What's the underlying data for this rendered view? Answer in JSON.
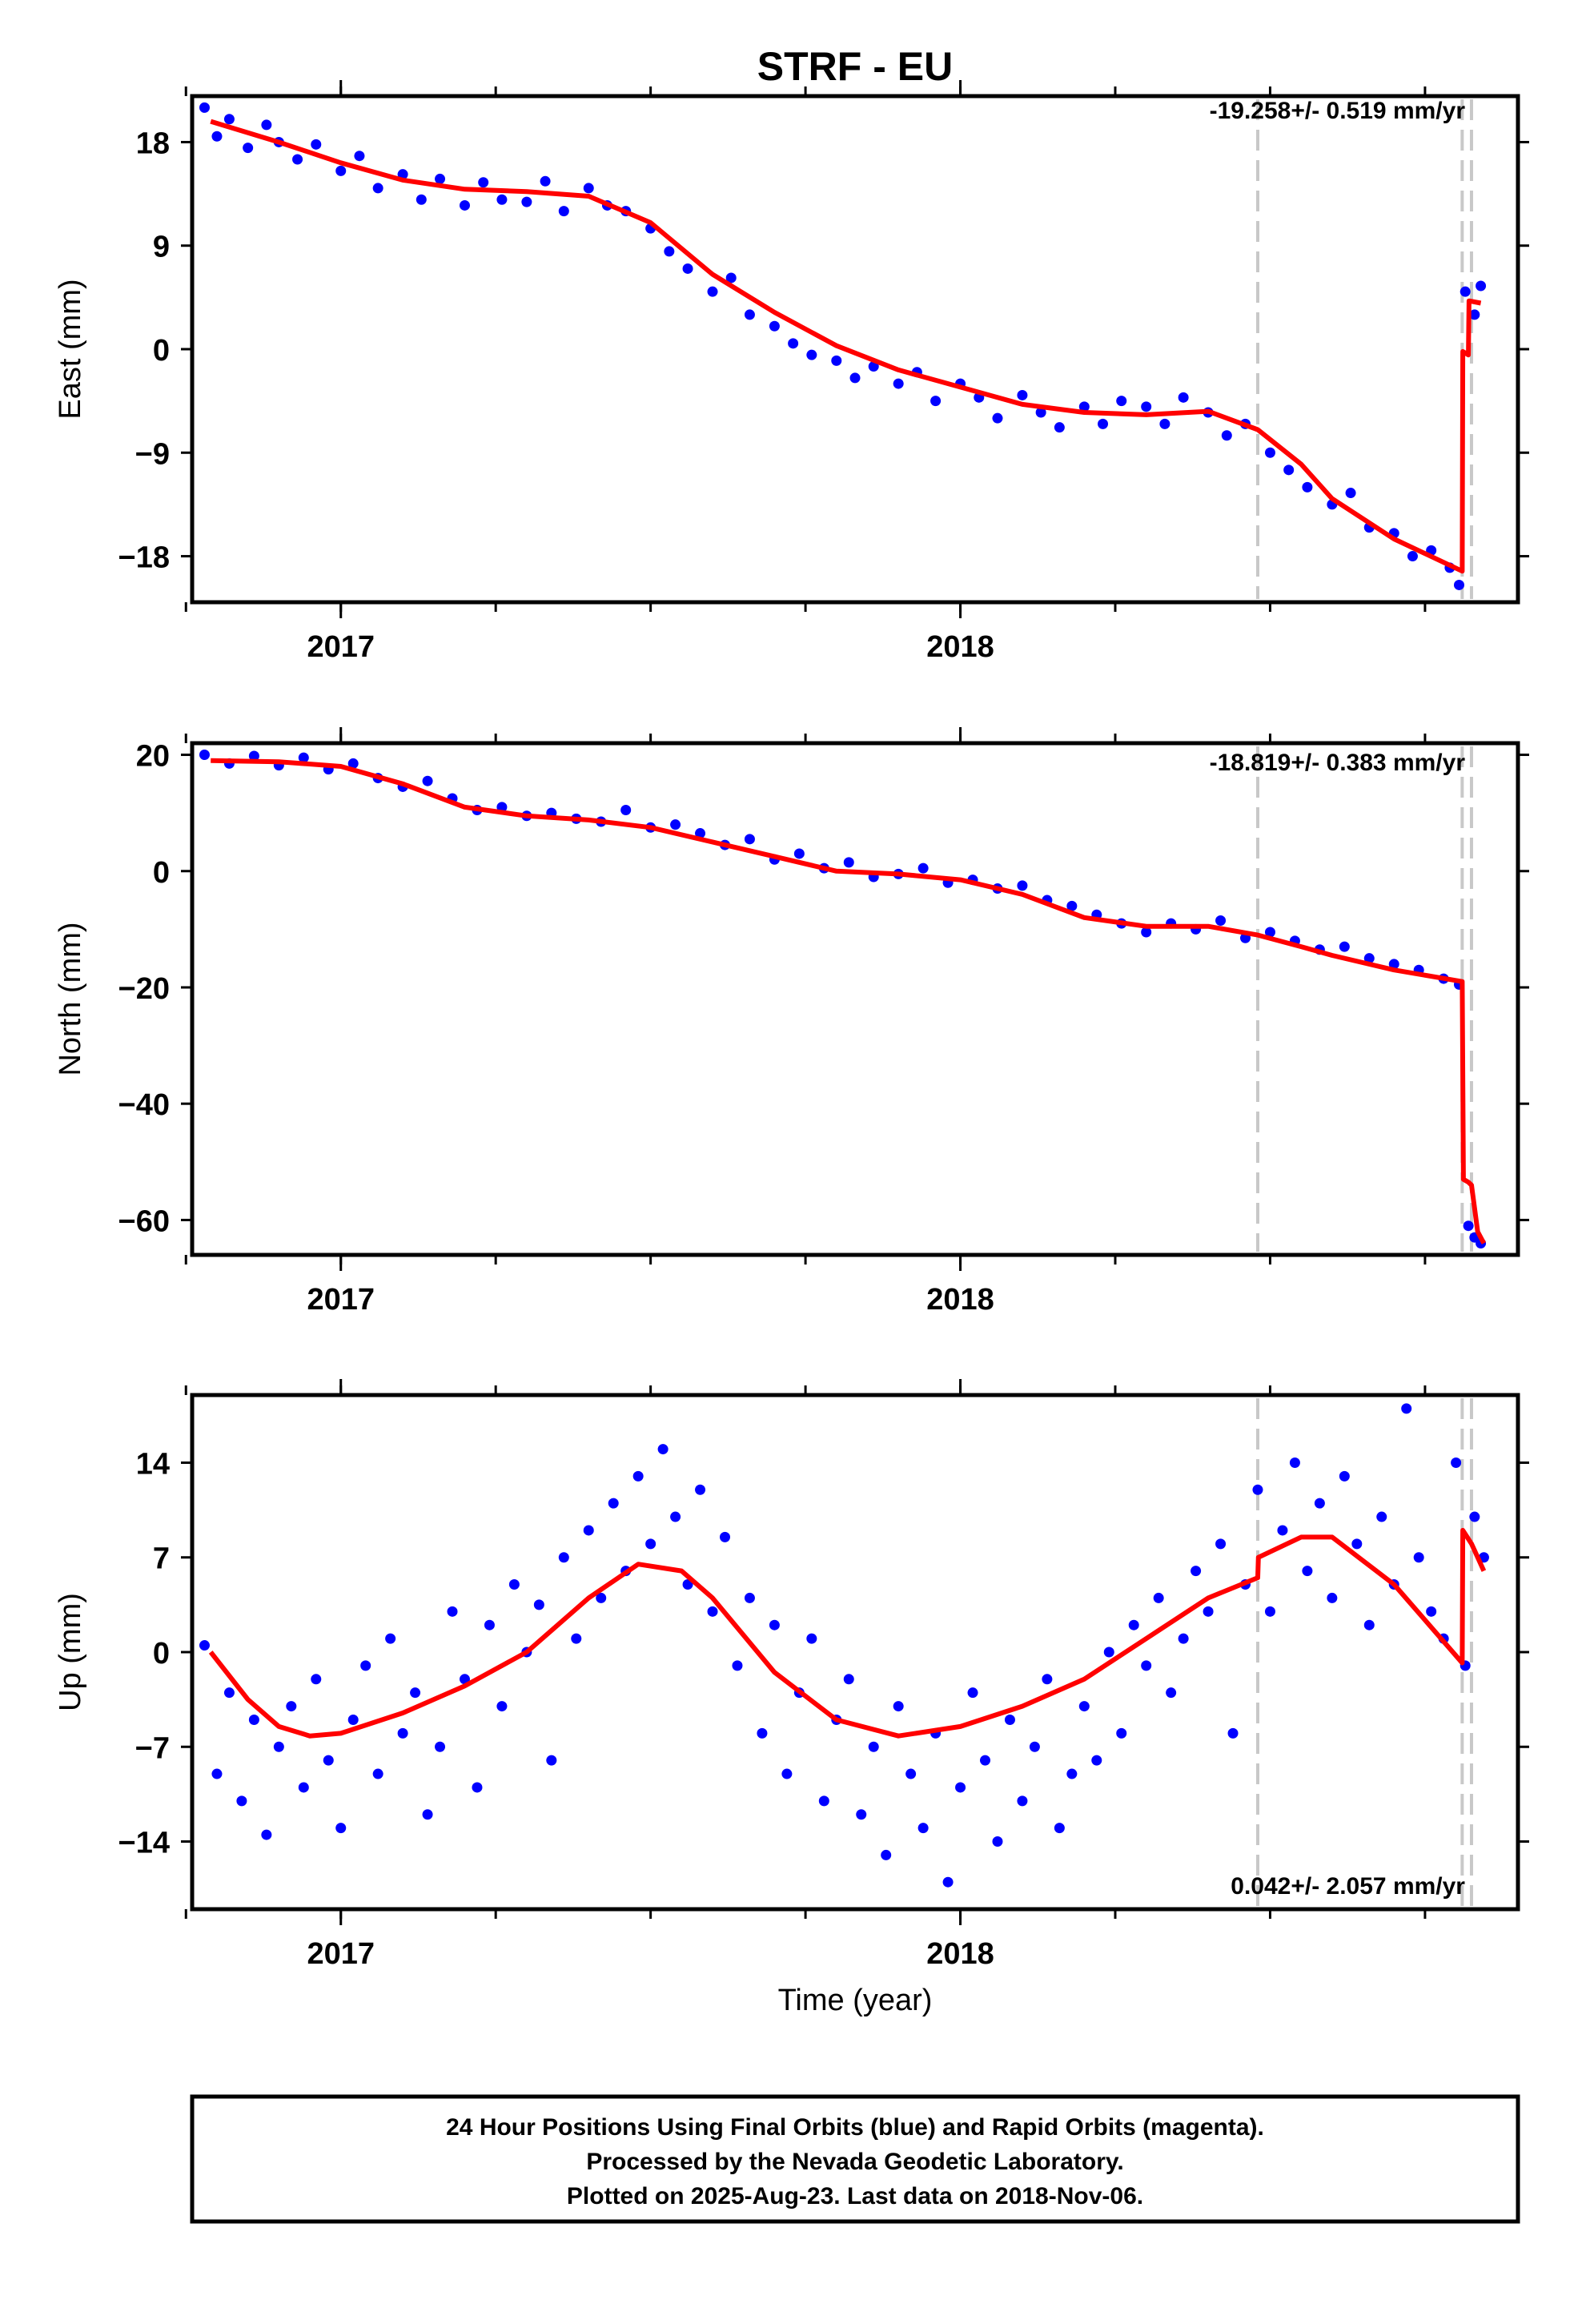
{
  "title": "STRF - EU",
  "xlabel": "Time (year)",
  "footer": [
    "24 Hour Positions Using Final Orbits (blue) and Rapid Orbits (magenta).",
    "Processed by the Nevada Geodetic Laboratory.",
    "Plotted on 2025-Aug-23. Last data on 2018-Nov-06."
  ],
  "colors": {
    "points": "#0000ff",
    "fit": "#ff0000",
    "events": "#c8c8c8",
    "frame": "#000000"
  },
  "chart_data": [
    {
      "type": "scatter",
      "ylabel": "East (mm)",
      "xlim": [
        2016.76,
        2018.9
      ],
      "ylim": [
        -22,
        22
      ],
      "yticks": [
        -18,
        -9,
        0,
        9,
        18
      ],
      "xticks": [
        2017,
        2018
      ],
      "annotation": "-19.258+/- 0.519 mm/yr",
      "events": [
        2018.48,
        2018.81,
        2018.825
      ],
      "series": [
        {
          "kind": "fit",
          "x": [
            2016.79,
            2016.9,
            2017.0,
            2017.1,
            2017.2,
            2017.3,
            2017.4,
            2017.5,
            2017.6,
            2017.7,
            2017.8,
            2017.9,
            2018.0,
            2018.1,
            2018.2,
            2018.3,
            2018.4,
            2018.48,
            2018.55,
            2018.6,
            2018.7,
            2018.81,
            2018.811,
            2018.82,
            2018.821,
            2018.84
          ],
          "y": [
            19.8,
            18.0,
            16.2,
            14.7,
            13.9,
            13.7,
            13.3,
            11.0,
            6.5,
            3.2,
            0.3,
            -1.8,
            -3.3,
            -4.8,
            -5.5,
            -5.7,
            -5.4,
            -7.0,
            -10.0,
            -13.0,
            -16.5,
            -19.3,
            -0.2,
            -0.5,
            4.2,
            4.0
          ]
        },
        {
          "kind": "points",
          "x": [
            2016.78,
            2016.8,
            2016.82,
            2016.85,
            2016.88,
            2016.9,
            2016.93,
            2016.96,
            2017.0,
            2017.03,
            2017.06,
            2017.1,
            2017.13,
            2017.16,
            2017.2,
            2017.23,
            2017.26,
            2017.3,
            2017.33,
            2017.36,
            2017.4,
            2017.43,
            2017.46,
            2017.5,
            2017.53,
            2017.56,
            2017.6,
            2017.63,
            2017.66,
            2017.7,
            2017.73,
            2017.76,
            2017.8,
            2017.83,
            2017.86,
            2017.9,
            2017.93,
            2017.96,
            2018.0,
            2018.03,
            2018.06,
            2018.1,
            2018.13,
            2018.16,
            2018.2,
            2018.23,
            2018.26,
            2018.3,
            2018.33,
            2018.36,
            2018.4,
            2018.43,
            2018.46,
            2018.5,
            2018.53,
            2018.56,
            2018.6,
            2018.63,
            2018.66,
            2018.7,
            2018.73,
            2018.76,
            2018.79,
            2018.805,
            2018.815,
            2018.83,
            2018.84
          ],
          "y": [
            21.0,
            18.5,
            20.0,
            17.5,
            19.5,
            18.0,
            16.5,
            17.8,
            15.5,
            16.8,
            14.0,
            15.2,
            13.0,
            14.8,
            12.5,
            14.5,
            13.0,
            12.8,
            14.6,
            12.0,
            14.0,
            12.5,
            12.0,
            10.5,
            8.5,
            7.0,
            5.0,
            6.2,
            3.0,
            2.0,
            0.5,
            -0.5,
            -1.0,
            -2.5,
            -1.5,
            -3.0,
            -2.0,
            -4.5,
            -3.0,
            -4.2,
            -6.0,
            -4.0,
            -5.5,
            -6.8,
            -5.0,
            -6.5,
            -4.5,
            -5.0,
            -6.5,
            -4.2,
            -5.5,
            -7.5,
            -6.5,
            -9.0,
            -10.5,
            -12.0,
            -13.5,
            -12.5,
            -15.5,
            -16.0,
            -18.0,
            -17.5,
            -19.0,
            -20.5,
            5.0,
            3.0,
            5.5
          ]
        }
      ]
    },
    {
      "type": "scatter",
      "ylabel": "North (mm)",
      "xlim": [
        2016.76,
        2018.9
      ],
      "ylim": [
        -66,
        22
      ],
      "yticks": [
        -60,
        -40,
        -20,
        0,
        20
      ],
      "xticks": [
        2017,
        2018
      ],
      "annotation": "-18.819+/- 0.383 mm/yr",
      "events": [
        2018.48,
        2018.81,
        2018.825
      ],
      "series": [
        {
          "kind": "fit",
          "x": [
            2016.79,
            2016.9,
            2017.0,
            2017.1,
            2017.2,
            2017.3,
            2017.4,
            2017.5,
            2017.6,
            2017.7,
            2017.8,
            2017.9,
            2018.0,
            2018.1,
            2018.2,
            2018.3,
            2018.4,
            2018.48,
            2018.55,
            2018.6,
            2018.7,
            2018.81,
            2018.812,
            2018.82,
            2018.825,
            2018.835,
            2018.845
          ],
          "y": [
            19.0,
            18.8,
            18.0,
            15.0,
            11.0,
            9.5,
            8.8,
            7.5,
            5.0,
            2.5,
            0.0,
            -0.5,
            -1.5,
            -4.0,
            -8.0,
            -9.5,
            -9.5,
            -11.0,
            -13.0,
            -14.5,
            -17.0,
            -19.0,
            -53.0,
            -53.5,
            -54.0,
            -62.0,
            -64.0
          ]
        },
        {
          "kind": "points",
          "x": [
            2016.78,
            2016.82,
            2016.86,
            2016.9,
            2016.94,
            2016.98,
            2017.02,
            2017.06,
            2017.1,
            2017.14,
            2017.18,
            2017.22,
            2017.26,
            2017.3,
            2017.34,
            2017.38,
            2017.42,
            2017.46,
            2017.5,
            2017.54,
            2017.58,
            2017.62,
            2017.66,
            2017.7,
            2017.74,
            2017.78,
            2017.82,
            2017.86,
            2017.9,
            2017.94,
            2017.98,
            2018.02,
            2018.06,
            2018.1,
            2018.14,
            2018.18,
            2018.22,
            2018.26,
            2018.3,
            2018.34,
            2018.38,
            2018.42,
            2018.46,
            2018.5,
            2018.54,
            2018.58,
            2018.62,
            2018.66,
            2018.7,
            2018.74,
            2018.78,
            2018.805,
            2018.82,
            2018.83,
            2018.84
          ],
          "y": [
            20.0,
            18.5,
            19.8,
            18.2,
            19.5,
            17.5,
            18.5,
            16.0,
            14.5,
            15.5,
            12.5,
            10.5,
            11.0,
            9.5,
            10.0,
            9.0,
            8.5,
            10.5,
            7.5,
            8.0,
            6.5,
            4.5,
            5.5,
            2.0,
            3.0,
            0.5,
            1.5,
            -1.0,
            -0.5,
            0.5,
            -2.0,
            -1.5,
            -3.0,
            -2.5,
            -5.0,
            -6.0,
            -7.5,
            -9.0,
            -10.5,
            -9.0,
            -10.0,
            -8.5,
            -11.5,
            -10.5,
            -12.0,
            -13.5,
            -13.0,
            -15.0,
            -16.0,
            -17.0,
            -18.5,
            -19.5,
            -61.0,
            -63.0,
            -64.0
          ]
        }
      ]
    },
    {
      "type": "scatter",
      "ylabel": "Up (mm)",
      "xlim": [
        2016.76,
        2018.9
      ],
      "ylim": [
        -19,
        19
      ],
      "yticks": [
        -14,
        -7,
        0,
        7,
        14
      ],
      "xticks": [
        2017,
        2018
      ],
      "annotation": "0.042+/- 2.057 mm/yr",
      "events": [
        2018.48,
        2018.81,
        2018.825
      ],
      "series": [
        {
          "kind": "fit",
          "x": [
            2016.79,
            2016.85,
            2016.9,
            2016.95,
            2017.0,
            2017.1,
            2017.2,
            2017.3,
            2017.4,
            2017.48,
            2017.55,
            2017.6,
            2017.7,
            2017.8,
            2017.9,
            2018.0,
            2018.1,
            2018.2,
            2018.3,
            2018.4,
            2018.48,
            2018.481,
            2018.55,
            2018.6,
            2018.7,
            2018.81,
            2018.811,
            2018.825,
            2018.845
          ],
          "y": [
            0.0,
            -3.5,
            -5.5,
            -6.2,
            -6.0,
            -4.5,
            -2.5,
            0.0,
            4.0,
            6.5,
            6.0,
            4.0,
            -1.5,
            -5.0,
            -6.2,
            -5.5,
            -4.0,
            -2.0,
            1.0,
            4.0,
            5.5,
            7.0,
            8.5,
            8.5,
            5.0,
            -0.8,
            9.0,
            8.0,
            6.0
          ]
        },
        {
          "kind": "points",
          "x": [
            2016.78,
            2016.8,
            2016.82,
            2016.84,
            2016.86,
            2016.88,
            2016.9,
            2016.92,
            2016.94,
            2016.96,
            2016.98,
            2017.0,
            2017.02,
            2017.04,
            2017.06,
            2017.08,
            2017.1,
            2017.12,
            2017.14,
            2017.16,
            2017.18,
            2017.2,
            2017.22,
            2017.24,
            2017.26,
            2017.28,
            2017.3,
            2017.32,
            2017.34,
            2017.36,
            2017.38,
            2017.4,
            2017.42,
            2017.44,
            2017.46,
            2017.48,
            2017.5,
            2017.52,
            2017.54,
            2017.56,
            2017.58,
            2017.6,
            2017.62,
            2017.64,
            2017.66,
            2017.68,
            2017.7,
            2017.72,
            2017.74,
            2017.76,
            2017.78,
            2017.8,
            2017.82,
            2017.84,
            2017.86,
            2017.88,
            2017.9,
            2017.92,
            2017.94,
            2017.96,
            2017.98,
            2018.0,
            2018.02,
            2018.04,
            2018.06,
            2018.08,
            2018.1,
            2018.12,
            2018.14,
            2018.16,
            2018.18,
            2018.2,
            2018.22,
            2018.24,
            2018.26,
            2018.28,
            2018.3,
            2018.32,
            2018.34,
            2018.36,
            2018.38,
            2018.4,
            2018.42,
            2018.44,
            2018.46,
            2018.48,
            2018.5,
            2018.52,
            2018.54,
            2018.56,
            2018.58,
            2018.6,
            2018.62,
            2018.64,
            2018.66,
            2018.68,
            2018.7,
            2018.72,
            2018.74,
            2018.76,
            2018.78,
            2018.8,
            2018.815,
            2018.83,
            2018.845
          ],
          "y": [
            0.5,
            -9.0,
            -3.0,
            -11.0,
            -5.0,
            -13.5,
            -7.0,
            -4.0,
            -10.0,
            -2.0,
            -8.0,
            -13.0,
            -5.0,
            -1.0,
            -9.0,
            1.0,
            -6.0,
            -3.0,
            -12.0,
            -7.0,
            3.0,
            -2.0,
            -10.0,
            2.0,
            -4.0,
            5.0,
            0.0,
            3.5,
            -8.0,
            7.0,
            1.0,
            9.0,
            4.0,
            11.0,
            6.0,
            13.0,
            8.0,
            15.0,
            10.0,
            5.0,
            12.0,
            3.0,
            8.5,
            -1.0,
            4.0,
            -6.0,
            2.0,
            -9.0,
            -3.0,
            1.0,
            -11.0,
            -5.0,
            -2.0,
            -12.0,
            -7.0,
            -15.0,
            -4.0,
            -9.0,
            -13.0,
            -6.0,
            -17.0,
            -10.0,
            -3.0,
            -8.0,
            -14.0,
            -5.0,
            -11.0,
            -7.0,
            -2.0,
            -13.0,
            -9.0,
            -4.0,
            -8.0,
            0.0,
            -6.0,
            2.0,
            -1.0,
            4.0,
            -3.0,
            1.0,
            6.0,
            3.0,
            8.0,
            -6.0,
            5.0,
            12.0,
            3.0,
            9.0,
            14.0,
            6.0,
            11.0,
            4.0,
            13.0,
            8.0,
            2.0,
            10.0,
            5.0,
            18.0,
            7.0,
            3.0,
            1.0,
            14.0,
            -1.0,
            10.0,
            7.0
          ]
        }
      ]
    }
  ]
}
